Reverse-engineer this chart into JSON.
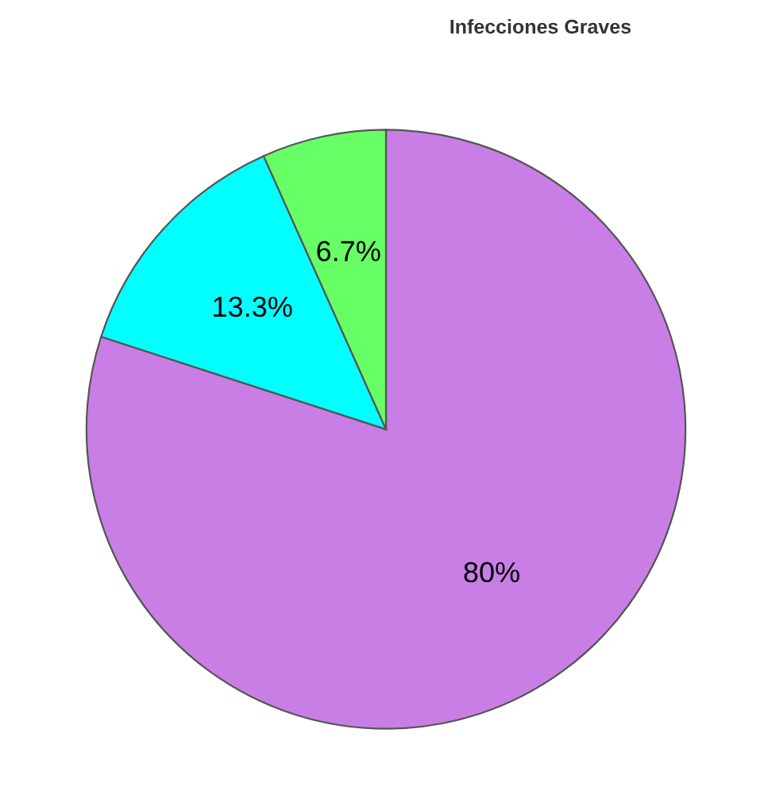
{
  "chart_data": {
    "type": "pie",
    "title": "Infecciones Graves",
    "categories": [
      null,
      null,
      null
    ],
    "values": [
      80,
      13.3,
      6.7
    ],
    "value_labels": [
      "80%",
      "13.3%",
      "6.7%"
    ],
    "colors": [
      "#c97ee6",
      "#00ffff",
      "#66ff66"
    ]
  }
}
